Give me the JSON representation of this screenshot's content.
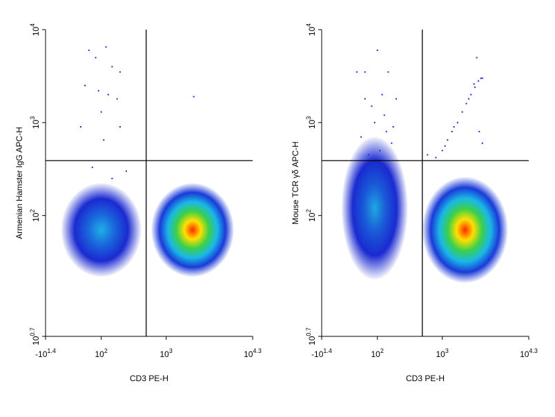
{
  "chart_data": [
    {
      "type": "dotplot",
      "x_label": "CD3 PE-H",
      "y_label": "Armenian Hamster IgG APC-H",
      "x_scale": "biexponential",
      "y_scale": "log",
      "xlim": [
        -25.1,
        19953
      ],
      "xticks": [
        {
          "value": -25.1,
          "label": "-10",
          "exp": "1.4"
        },
        {
          "value": 100,
          "label": "10",
          "exp": "2"
        },
        {
          "value": 1000,
          "label": "10",
          "exp": "3"
        },
        {
          "value": 19953,
          "label": "10",
          "exp": "4.3"
        }
      ],
      "ylim": [
        5.01,
        10000
      ],
      "yticks": [
        {
          "value": 5.01,
          "label": "10",
          "exp": "0.7"
        },
        {
          "value": 100,
          "label": "10",
          "exp": "2"
        },
        {
          "value": 1000,
          "label": "10",
          "exp": "3"
        },
        {
          "value": 10000,
          "label": "10",
          "exp": "4"
        }
      ],
      "quadrant": {
        "x": 500,
        "y": 390
      },
      "populations": [
        {
          "x": 100,
          "y": 70,
          "x_range": [
            15,
            420
          ],
          "y_range": [
            22,
            150
          ],
          "colors": [
            "#1fb0e6",
            "#1a66dc",
            "#1a2ad0"
          ]
        },
        {
          "x": 2500,
          "y": 70,
          "x_range": [
            600,
            9000
          ],
          "y_range": [
            22,
            220
          ],
          "colors": [
            "#ff2a00",
            "#ffe000",
            "#3ad04a",
            "#1ab8e8",
            "#1a3ad8"
          ]
        }
      ],
      "events": {
        "x": [
          60,
          80,
          120,
          150,
          200,
          50,
          90,
          130,
          180,
          100,
          200,
          110,
          40,
          2600,
          70,
          150,
          250
        ],
        "y": [
          6000,
          5000,
          6500,
          4000,
          3500,
          2500,
          2200,
          2000,
          1800,
          1300,
          900,
          650,
          900,
          1900,
          330,
          250,
          300
        ]
      }
    },
    {
      "type": "dotplot",
      "x_label": "CD3 PE-H",
      "y_label": "Mouse TCR γδ APC-H",
      "x_scale": "biexponential",
      "y_scale": "log",
      "xlim": [
        -25.1,
        19953
      ],
      "xticks": [
        {
          "value": -25.1,
          "label": "-10",
          "exp": "1.4"
        },
        {
          "value": 100,
          "label": "10",
          "exp": "2"
        },
        {
          "value": 1000,
          "label": "10",
          "exp": "3"
        },
        {
          "value": 19953,
          "label": "10",
          "exp": "4.3"
        }
      ],
      "ylim": [
        5.01,
        10000
      ],
      "yticks": [
        {
          "value": 5.01,
          "label": "10",
          "exp": "0.7"
        },
        {
          "value": 100,
          "label": "10",
          "exp": "2"
        },
        {
          "value": 1000,
          "label": "10",
          "exp": "3"
        },
        {
          "value": 10000,
          "label": "10",
          "exp": "4"
        }
      ],
      "quadrant": {
        "x": 500,
        "y": 390
      },
      "populations": [
        {
          "x": 90,
          "y": 120,
          "x_range": [
            15,
            300
          ],
          "y_range": [
            25,
            700
          ],
          "colors": [
            "#1fa8e0",
            "#1a5ad8",
            "#1a2ad0"
          ]
        },
        {
          "x": 2200,
          "y": 70,
          "x_range": [
            500,
            7000
          ],
          "y_range": [
            22,
            260
          ],
          "colors": [
            "#ff2a00",
            "#ffe000",
            "#3ad04a",
            "#1ab8e8",
            "#1a3ad8"
          ]
        }
      ],
      "events": {
        "x": [
          100,
          60,
          150,
          120,
          80,
          200,
          90,
          140,
          50,
          170,
          110,
          70,
          130,
          180,
          40,
          60,
          800,
          1000,
          1200,
          1400,
          1700,
          2000,
          2300,
          2700,
          3100,
          3500,
          3800,
          1100,
          1500,
          2500,
          3000,
          4000,
          3300,
          600,
          3600,
          4000
        ],
        "y": [
          6000,
          3500,
          3500,
          2000,
          1500,
          1800,
          1000,
          800,
          700,
          600,
          500,
          450,
          1200,
          900,
          3500,
          1800,
          420,
          500,
          650,
          800,
          1000,
          1300,
          1600,
          2000,
          2400,
          2800,
          3000,
          560,
          900,
          1800,
          2600,
          3000,
          5000,
          450,
          800,
          600
        ]
      }
    }
  ]
}
